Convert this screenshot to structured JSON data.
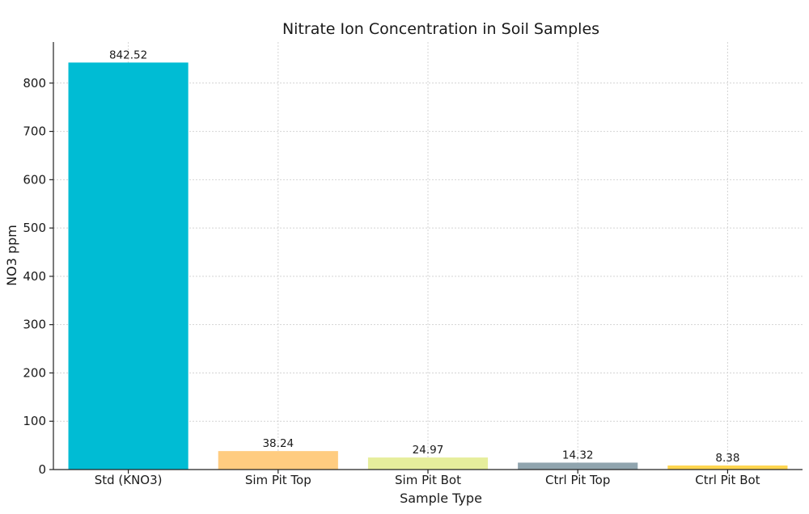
{
  "chart_data": {
    "type": "bar",
    "title": "Nitrate Ion Concentration in Soil Samples",
    "xlabel": "Sample Type",
    "ylabel": "NO3 ppm",
    "categories": [
      "Std (KNO3)",
      "Sim Pit Top",
      "Sim Pit Bot",
      "Ctrl Pit Top",
      "Ctrl Pit Bot"
    ],
    "values": [
      842.52,
      38.24,
      24.97,
      14.32,
      8.38
    ],
    "data_labels": [
      "842.52",
      "38.24",
      "24.97",
      "14.32",
      "8.38"
    ],
    "colors": [
      "#00bcd4",
      "#ffcc80",
      "#e6ee9c",
      "#90a4ae",
      "#ffd54f"
    ],
    "ylim": [
      0,
      885
    ],
    "yticks": [
      0,
      100,
      200,
      300,
      400,
      500,
      600,
      700,
      800
    ],
    "ytick_labels": [
      "0",
      "100",
      "200",
      "300",
      "400",
      "500",
      "600",
      "700",
      "800"
    ],
    "grid": true,
    "grid_color": "#d4d4d4",
    "axis_color": "#222222"
  }
}
